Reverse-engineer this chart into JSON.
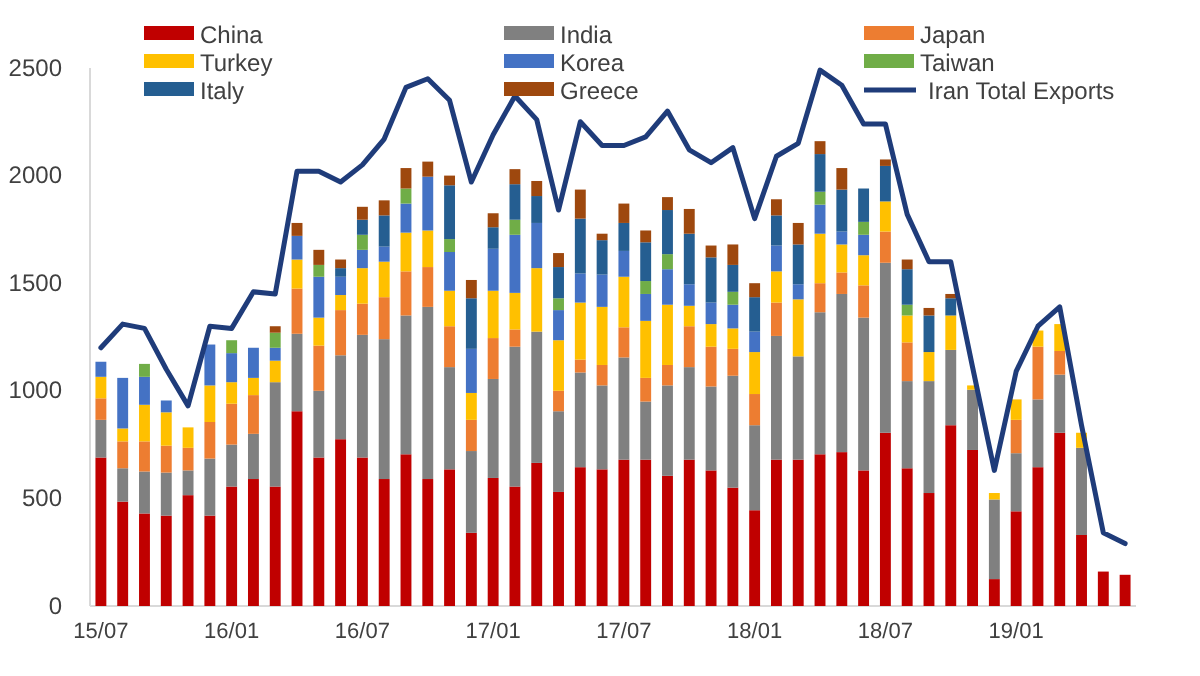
{
  "chart_data": {
    "type": "bar",
    "stacked": true,
    "legend": "top",
    "grid": false,
    "categories": [
      "15/07",
      null,
      null,
      null,
      null,
      null,
      "16/01",
      null,
      null,
      null,
      null,
      null,
      "16/07",
      null,
      null,
      null,
      null,
      null,
      "17/01",
      null,
      null,
      null,
      null,
      null,
      "17/07",
      null,
      null,
      null,
      null,
      null,
      "18/01",
      null,
      null,
      null,
      null,
      null,
      "18/07",
      null,
      null,
      null,
      null,
      null,
      "19/01",
      null,
      null,
      null,
      null,
      null
    ],
    "ylim": [
      0,
      2500
    ],
    "yticks": [
      0,
      500,
      1000,
      1500,
      2000,
      2500
    ],
    "series": [
      {
        "name": "China",
        "color": "#c00000",
        "values": [
          690,
          485,
          430,
          420,
          515,
          420,
          555,
          590,
          555,
          905,
          690,
          775,
          690,
          590,
          705,
          590,
          635,
          340,
          595,
          555,
          665,
          530,
          645,
          635,
          680,
          680,
          605,
          680,
          630,
          550,
          445,
          680,
          680,
          705,
          715,
          630,
          805,
          640,
          525,
          840,
          725,
          125,
          440,
          645,
          805,
          330,
          160,
          145
        ]
      },
      {
        "name": "India",
        "color": "#808080",
        "values": [
          175,
          155,
          195,
          200,
          115,
          265,
          195,
          210,
          485,
          360,
          310,
          390,
          570,
          650,
          645,
          800,
          475,
          380,
          460,
          650,
          610,
          375,
          440,
          390,
          475,
          270,
          420,
          430,
          390,
          520,
          395,
          575,
          480,
          660,
          735,
          710,
          790,
          405,
          520,
          350,
          280,
          370,
          270,
          315,
          270,
          405,
          0,
          0
        ]
      },
      {
        "name": "Japan",
        "color": "#ed7d31",
        "values": [
          100,
          125,
          140,
          125,
          105,
          170,
          190,
          180,
          0,
          210,
          210,
          210,
          145,
          195,
          205,
          185,
          190,
          145,
          190,
          80,
          0,
          95,
          60,
          95,
          140,
          110,
          95,
          190,
          185,
          125,
          145,
          155,
          0,
          135,
          100,
          150,
          145,
          180,
          0,
          0,
          0,
          0,
          155,
          245,
          110,
          0,
          0,
          0
        ]
      },
      {
        "name": "Turkey",
        "color": "#ffc000",
        "values": [
          100,
          60,
          170,
          155,
          95,
          170,
          100,
          80,
          100,
          135,
          130,
          70,
          165,
          165,
          180,
          170,
          165,
          125,
          220,
          170,
          295,
          235,
          265,
          270,
          235,
          265,
          280,
          95,
          105,
          95,
          195,
          145,
          265,
          230,
          130,
          140,
          140,
          125,
          135,
          160,
          20,
          30,
          95,
          75,
          125,
          70,
          0,
          0
        ]
      },
      {
        "name": "Korea",
        "color": "#4472c4",
        "values": [
          70,
          235,
          130,
          55,
          0,
          190,
          135,
          140,
          60,
          110,
          190,
          85,
          85,
          70,
          135,
          250,
          180,
          205,
          195,
          270,
          210,
          140,
          135,
          150,
          120,
          125,
          165,
          100,
          100,
          110,
          95,
          120,
          70,
          135,
          60,
          95,
          0,
          0,
          0,
          0,
          0,
          0,
          0,
          0,
          0,
          0,
          0,
          0
        ]
      },
      {
        "name": "Taiwan",
        "color": "#70ad47",
        "values": [
          0,
          0,
          60,
          0,
          0,
          0,
          60,
          0,
          70,
          0,
          55,
          0,
          70,
          0,
          70,
          0,
          60,
          0,
          0,
          70,
          0,
          55,
          0,
          0,
          0,
          60,
          70,
          0,
          0,
          60,
          0,
          0,
          0,
          60,
          0,
          60,
          0,
          50,
          0,
          0,
          0,
          0,
          0,
          0,
          0,
          0,
          0,
          0
        ]
      },
      {
        "name": "Italy",
        "color": "#255e91",
        "values": [
          0,
          0,
          0,
          0,
          0,
          0,
          0,
          0,
          0,
          0,
          0,
          40,
          70,
          145,
          0,
          0,
          250,
          235,
          100,
          165,
          125,
          145,
          255,
          160,
          130,
          180,
          205,
          235,
          210,
          125,
          160,
          140,
          185,
          175,
          195,
          155,
          165,
          165,
          170,
          80,
          0,
          0,
          0,
          0,
          0,
          0,
          0,
          0
        ]
      },
      {
        "name": "Greece",
        "color": "#9e480e",
        "values": [
          0,
          0,
          0,
          0,
          0,
          0,
          0,
          0,
          30,
          60,
          70,
          40,
          60,
          70,
          95,
          70,
          45,
          85,
          65,
          70,
          70,
          65,
          135,
          30,
          90,
          55,
          60,
          115,
          55,
          95,
          65,
          75,
          100,
          60,
          100,
          0,
          30,
          45,
          35,
          20,
          0,
          0,
          0,
          0,
          0,
          0,
          0,
          0
        ]
      },
      {
        "name": "Iran Total Exports",
        "type": "line",
        "color": "#1f3c7a",
        "values": [
          1200,
          1310,
          1290,
          1100,
          930,
          1300,
          1290,
          1460,
          1450,
          2020,
          2020,
          1970,
          2050,
          2170,
          2410,
          2450,
          2350,
          1970,
          2190,
          2370,
          2260,
          1840,
          2250,
          2140,
          2140,
          2180,
          2300,
          2120,
          2060,
          2130,
          1800,
          2090,
          2150,
          2490,
          2420,
          2240,
          2240,
          1820,
          1600,
          1600,
          1110,
          630,
          1090,
          1300,
          1390,
          840,
          340,
          290
        ]
      }
    ]
  }
}
